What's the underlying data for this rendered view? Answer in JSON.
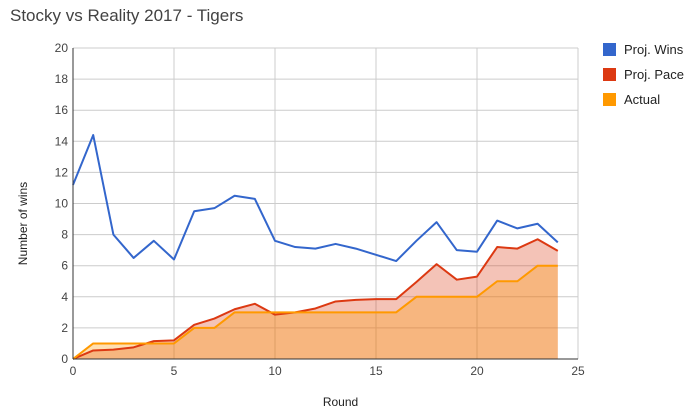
{
  "chart_data": {
    "type": "area",
    "title": "Stocky vs Reality 2017 - Tigers",
    "xlabel": "Round",
    "ylabel": "Number of wins",
    "xlim": [
      0,
      25
    ],
    "ylim": [
      0,
      20
    ],
    "xticks": [
      0,
      5,
      10,
      15,
      20,
      25
    ],
    "yticks": [
      0,
      2,
      4,
      6,
      8,
      10,
      12,
      14,
      16,
      18,
      20
    ],
    "grid": true,
    "legend": "right",
    "x": [
      0,
      1,
      2,
      3,
      4,
      5,
      6,
      7,
      8,
      9,
      10,
      11,
      12,
      13,
      14,
      15,
      16,
      17,
      18,
      19,
      20,
      21,
      22,
      23,
      24
    ],
    "series": [
      {
        "name": "Proj. Wins",
        "color": "#3366cc",
        "fill": false,
        "values": [
          11.2,
          14.4,
          8.0,
          6.5,
          7.6,
          6.4,
          9.5,
          9.7,
          10.5,
          10.3,
          7.6,
          7.2,
          7.1,
          7.4,
          7.1,
          6.7,
          6.3,
          7.6,
          8.8,
          7.0,
          6.9,
          8.9,
          8.4,
          8.7,
          7.5
        ]
      },
      {
        "name": "Proj. Pace",
        "color": "#dc3912",
        "fill": true,
        "values": [
          0.0,
          0.55,
          0.6,
          0.75,
          1.15,
          1.2,
          2.2,
          2.6,
          3.2,
          3.55,
          2.85,
          3.0,
          3.25,
          3.7,
          3.8,
          3.85,
          3.85,
          4.95,
          6.1,
          5.1,
          5.3,
          7.2,
          7.1,
          7.7,
          6.95
        ]
      },
      {
        "name": "Actual",
        "color": "#ff9900",
        "fill": true,
        "values": [
          0,
          1,
          1,
          1,
          1,
          1,
          2,
          2,
          3,
          3,
          3,
          3,
          3,
          3,
          3,
          3,
          3,
          4,
          4,
          4,
          4,
          5,
          5,
          6,
          6
        ]
      }
    ]
  }
}
